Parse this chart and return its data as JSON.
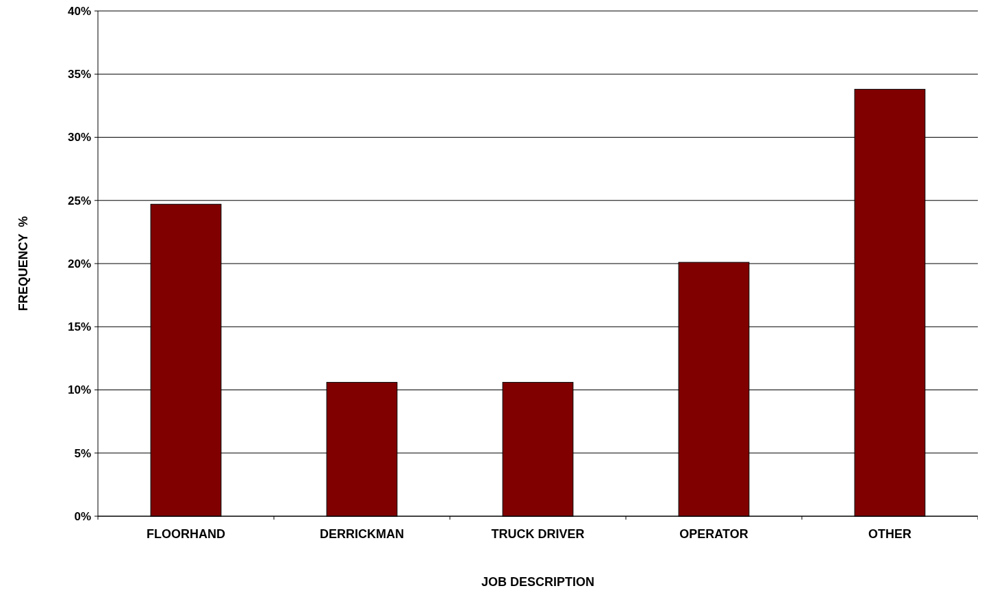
{
  "chart_data": {
    "type": "bar",
    "xlabel": "JOB DESCRIPTION",
    "ylabel": "FREQUENCY  %",
    "categories": [
      "FLOORHAND",
      "DERRICKMAN",
      "TRUCK DRIVER",
      "OPERATOR",
      "OTHER"
    ],
    "values": [
      24.7,
      10.6,
      10.6,
      20.1,
      33.8
    ],
    "color": "#800000",
    "ylim": [
      0,
      40
    ],
    "yticks": [
      {
        "value": 0,
        "label": "0%"
      },
      {
        "value": 5,
        "label": "5%"
      },
      {
        "value": 10,
        "label": "10%"
      },
      {
        "value": 15,
        "label": "15%"
      },
      {
        "value": 20,
        "label": "20%"
      },
      {
        "value": 25,
        "label": "25%"
      },
      {
        "value": 30,
        "label": "30%"
      },
      {
        "value": 35,
        "label": "35%"
      },
      {
        "value": 40,
        "label": "40%"
      }
    ],
    "grid": "y"
  }
}
